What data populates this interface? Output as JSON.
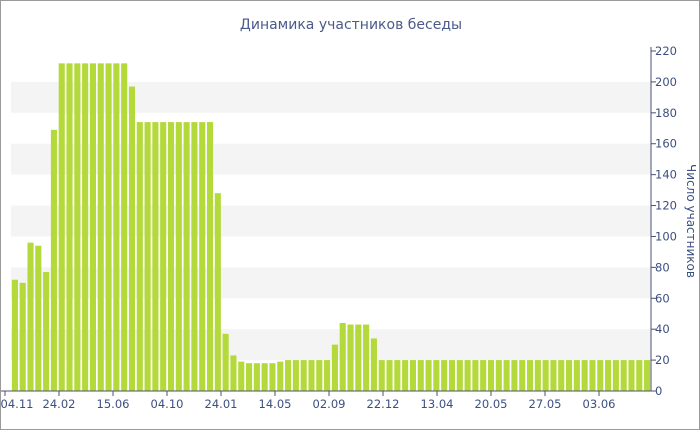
{
  "chart_data": {
    "type": "bar",
    "title": "Динамика участников беседы",
    "ylabel": "Число участников",
    "xlabel": "",
    "ylim": [
      0,
      220
    ],
    "yticks": [
      0,
      20,
      40,
      60,
      80,
      100,
      120,
      140,
      160,
      180,
      200,
      220
    ],
    "y_axis_position": "right",
    "grid": "alternating horizontal bands",
    "bar_color": "#b4d93a",
    "x_tick_labels": [
      "04.11",
      "24.02",
      "15.06",
      "04.10",
      "24.01",
      "14.05",
      "02.09",
      "22.12",
      "13.04",
      "20.05",
      "27.05",
      "03.06"
    ],
    "values": [
      72,
      70,
      96,
      94,
      77,
      169,
      212,
      212,
      212,
      212,
      212,
      212,
      212,
      212,
      212,
      197,
      174,
      174,
      174,
      174,
      174,
      174,
      174,
      174,
      174,
      174,
      128,
      37,
      23,
      19,
      18,
      18,
      18,
      18,
      19,
      20,
      20,
      20,
      20,
      20,
      20,
      30,
      44,
      43,
      43,
      43,
      34,
      20,
      20,
      20,
      20,
      20,
      20,
      20,
      20,
      20,
      20,
      20,
      20,
      20,
      20,
      20,
      20,
      20,
      20,
      20,
      20,
      20,
      20,
      20,
      20,
      20,
      20,
      20,
      20,
      20,
      20,
      20,
      20,
      20,
      20,
      20
    ]
  }
}
